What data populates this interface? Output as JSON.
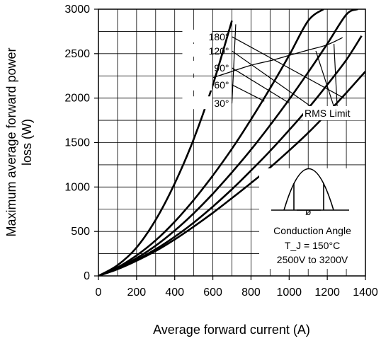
{
  "chart_data": {
    "type": "line",
    "xlabel": "Average forward current (A)",
    "ylabel_lines": [
      "Maximum average forward power",
      "loss (W)"
    ],
    "xlim": [
      0,
      1400
    ],
    "ylim": [
      0,
      3000
    ],
    "x_ticks": [
      0,
      200,
      400,
      600,
      800,
      1000,
      1200,
      1400
    ],
    "y_ticks": [
      0,
      500,
      1000,
      1500,
      2000,
      2500,
      3000
    ],
    "x_minor_step": 100,
    "y_minor_step": 250,
    "grid": true,
    "series": [
      {
        "name": "180°",
        "x": [
          0,
          100,
          200,
          300,
          400,
          500,
          600,
          700,
          800,
          900,
          1000,
          1100,
          1200,
          1300,
          1400
        ],
        "y": [
          0,
          75,
          170,
          280,
          410,
          555,
          710,
          875,
          1045,
          1220,
          1410,
          1610,
          1830,
          2060,
          2300
        ]
      },
      {
        "name": "120°",
        "x": [
          0,
          100,
          200,
          300,
          400,
          500,
          600,
          700,
          800,
          900,
          1000,
          1100,
          1200,
          1300,
          1380
        ],
        "y": [
          0,
          80,
          180,
          300,
          440,
          600,
          780,
          975,
          1185,
          1405,
          1640,
          1885,
          2150,
          2430,
          2700
        ]
      },
      {
        "name": "90°",
        "x": [
          0,
          100,
          200,
          300,
          400,
          500,
          600,
          700,
          800,
          900,
          1000,
          1100,
          1200,
          1300,
          1360
        ],
        "y": [
          0,
          85,
          200,
          340,
          510,
          705,
          925,
          1165,
          1420,
          1695,
          1985,
          2290,
          2610,
          2940,
          3000
        ]
      },
      {
        "name": "60°",
        "x": [
          0,
          100,
          200,
          300,
          400,
          500,
          600,
          700,
          800,
          900,
          1000,
          1100,
          1180
        ],
        "y": [
          0,
          95,
          230,
          400,
          610,
          855,
          1130,
          1430,
          1760,
          2110,
          2480,
          2870,
          3000
        ]
      },
      {
        "name": "30°",
        "x": [
          0,
          100,
          200,
          300,
          400,
          500,
          600,
          700
        ],
        "y": [
          0,
          120,
          320,
          630,
          1040,
          1540,
          2150,
          2870
        ]
      }
    ],
    "rms_limit": {
      "label": "RMS Limit",
      "x": [
        600,
        700,
        800,
        900,
        1000,
        1100,
        1200,
        1280
      ],
      "y": [
        2230,
        2300,
        2370,
        2420,
        2480,
        2540,
        2600,
        2680
      ]
    },
    "angle_labels": [
      "180°",
      "120°",
      "90°",
      "60°",
      "30°"
    ],
    "inset": {
      "symbol": "ø",
      "lines": [
        "Conduction Angle",
        "T_J = 150°C",
        "2500V to 3200V"
      ]
    }
  }
}
